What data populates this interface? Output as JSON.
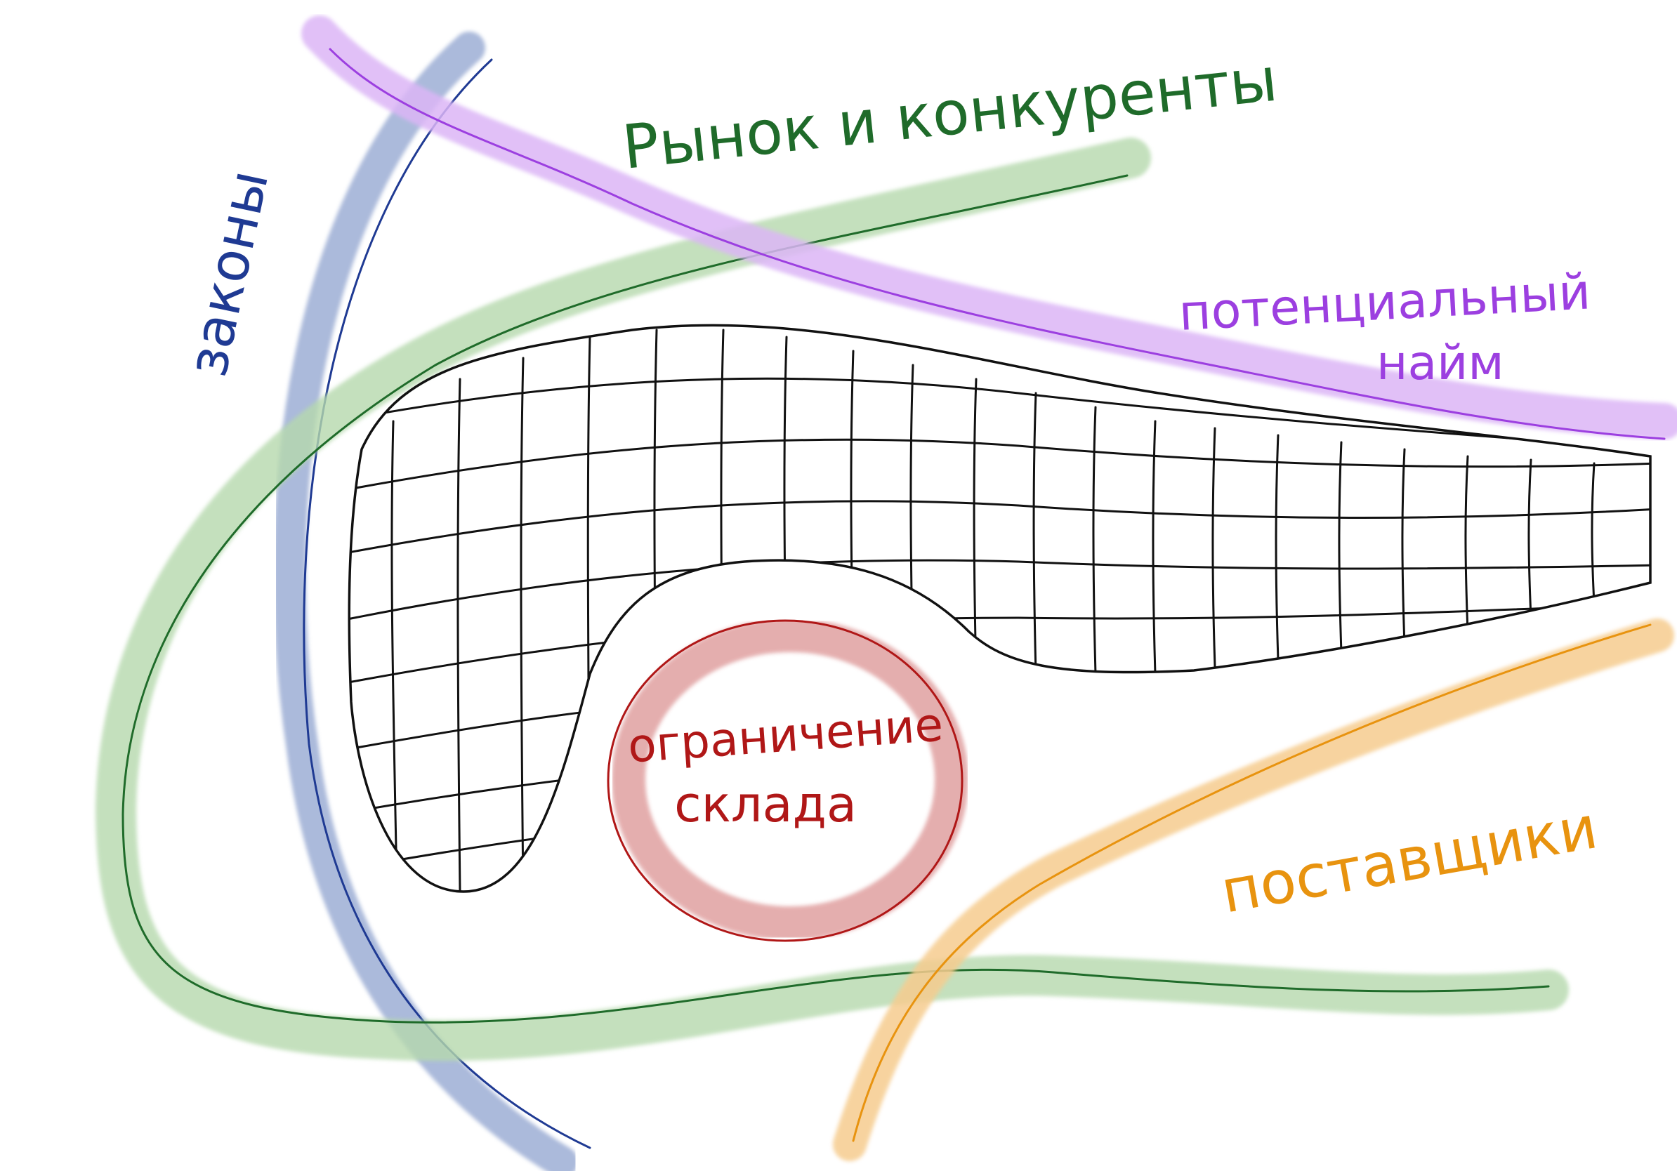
{
  "labels": {
    "market": "Рынок и конкуренты",
    "laws": "законы",
    "hiring_line1": "потенциальный",
    "hiring_line2": "найм",
    "warehouse_line1": "ограничение",
    "warehouse_line2": "склада",
    "suppliers": "поставщики"
  },
  "colors": {
    "laws": "#1f3a93",
    "laws_wash": "#8fa3cf",
    "market": "#1f6b2a",
    "market_wash": "#b6d9ad",
    "hiring": "#9c3fe0",
    "hiring_wash": "#dcb6f6",
    "warehouse": "#b01717",
    "warehouse_wash": "#e2a6a6",
    "suppliers": "#e8930f",
    "suppliers_wash": "#f6cc8f",
    "grid": "#111111"
  }
}
